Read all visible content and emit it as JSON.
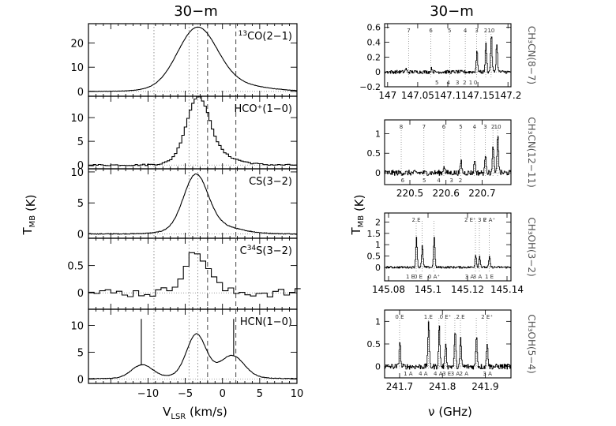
{
  "figure": {
    "left_title": "30−m",
    "right_title": "30−m",
    "left_xlabel": "V_LSR (km/s)",
    "left_ylabel": "T_MB (K)",
    "right_xlabel": "ν (GHz)",
    "right_ylabel": "T_MB (K)"
  },
  "chart_data": [
    {
      "type": "line",
      "panel": "left-1",
      "label_main": "CO(2−1)",
      "label_pre": "13",
      "xlim": [
        -18,
        10
      ],
      "ylim": [
        -2,
        28
      ],
      "yticks": [
        0,
        10,
        20
      ],
      "xticks": [
        -10,
        -5,
        0,
        5,
        10
      ],
      "xticklabels": [],
      "vlines_dotted": [
        -9.2,
        -4.5,
        -3.3
      ],
      "vlines_dashed": [
        -2.0,
        1.8
      ],
      "profile": {
        "kind": "smooth",
        "components": [
          [
            23.0,
            -3.4,
            2.6
          ],
          [
            4.0,
            -1.0,
            5.0
          ]
        ],
        "baseline": 0.0,
        "noise": 0.15
      }
    },
    {
      "type": "line",
      "panel": "left-2",
      "label_main": "HCO⁺(1−0)",
      "label_pre": "",
      "xlim": [
        -18,
        10
      ],
      "ylim": [
        -0.8,
        14.5
      ],
      "yticks": [
        0,
        5,
        10
      ],
      "xticks": [
        -10,
        -5,
        0,
        5,
        10
      ],
      "xticklabels": [],
      "vlines_dotted": [
        -9.2,
        -4.5,
        -3.3
      ],
      "vlines_dashed": [
        -2.0,
        1.8
      ],
      "profile": {
        "kind": "step",
        "components": [
          [
            12.3,
            -3.3,
            1.5
          ],
          [
            2.5,
            -1.8,
            3.0
          ]
        ],
        "baseline": 0.0,
        "noise": 0.2
      }
    },
    {
      "type": "line",
      "panel": "left-3",
      "label_main": "CS(3−2)",
      "label_pre": "",
      "xlim": [
        -18,
        10
      ],
      "ylim": [
        -0.7,
        10.5
      ],
      "yticks": [
        0,
        5,
        10
      ],
      "xticks": [
        -10,
        -5,
        0,
        5,
        10
      ],
      "xticklabels": [],
      "vlines_dotted": [
        -9.2,
        -4.5,
        -3.3
      ],
      "vlines_dashed": [
        -2.0,
        1.8
      ],
      "profile": {
        "kind": "smooth",
        "components": [
          [
            8.2,
            -3.6,
            1.6
          ],
          [
            1.6,
            -2.0,
            3.5
          ]
        ],
        "baseline": 0.0,
        "noise": 0.12
      }
    },
    {
      "type": "line",
      "panel": "left-4",
      "label_main": "S(3−2)",
      "label_pre": "C",
      "label_sup": "34",
      "xlim": [
        -18,
        10
      ],
      "ylim": [
        -0.3,
        1.0
      ],
      "yticks": [
        0,
        0.5
      ],
      "xticks": [
        -10,
        -5,
        0,
        5,
        10
      ],
      "xticklabels": [],
      "vlines_dotted": [
        -9.2,
        -4.5,
        -3.3
      ],
      "vlines_dashed": [
        -2.0,
        1.8
      ],
      "profile": {
        "kind": "step_coarse",
        "components": [
          [
            0.72,
            -3.5,
            1.7
          ]
        ],
        "baseline": 0.0,
        "noise": 0.1
      }
    },
    {
      "type": "line",
      "panel": "left-5",
      "label_main": "HCN(1−0)",
      "label_pre": "",
      "xlim": [
        -18,
        10
      ],
      "ylim": [
        -0.8,
        13
      ],
      "yticks": [
        0,
        5,
        10
      ],
      "xticks": [
        -10,
        -5,
        0,
        5,
        10
      ],
      "xticklabels": [
        "−10",
        "−5",
        "0",
        "5",
        "10"
      ],
      "vlines_dotted": [
        -9.2,
        -4.5,
        -3.3
      ],
      "vlines_dashed": [
        -2.0,
        1.8
      ],
      "spikes": [
        -10.9,
        1.5
      ],
      "spike_height": 11.2,
      "profile": {
        "kind": "hcn",
        "components": [
          [
            7.5,
            -3.5,
            1.3
          ],
          [
            2.4,
            -10.8,
            1.4
          ],
          [
            4.0,
            1.3,
            1.6
          ]
        ],
        "baseline": 0.0,
        "noise": 0.1
      }
    },
    {
      "type": "line",
      "panel": "right-1",
      "label_main": "CH₃CN(8−7)",
      "xlim": [
        146.995,
        147.205
      ],
      "ylim": [
        -0.2,
        0.65
      ],
      "yticks": [
        -0.2,
        0,
        0.2,
        0.4,
        0.6
      ],
      "yticklabels": [
        "−0.2",
        "0",
        "0.2",
        "0.4",
        "0.6"
      ],
      "xticks": [
        147.0,
        147.05,
        147.1,
        147.15,
        147.2
      ],
      "xticklabels": [
        "147",
        "147.05",
        "147.1",
        "147.15",
        "147.2"
      ],
      "lines": [
        147.035,
        147.072,
        147.103,
        147.129,
        147.148,
        147.163,
        147.172
      ],
      "top_labels": [
        "7",
        "6",
        "5",
        "4",
        "3",
        "2",
        "10"
      ],
      "bottom_labels": [
        "5",
        "4",
        "3",
        "2",
        "1",
        "0"
      ],
      "bottom_xs": [
        147.082,
        147.101,
        147.116,
        147.128,
        147.138,
        147.146
      ],
      "peaks": [
        [
          147.148,
          0.28
        ],
        [
          147.163,
          0.38
        ],
        [
          147.172,
          0.5
        ],
        [
          147.181,
          0.38
        ],
        [
          147.073,
          0.05
        ],
        [
          147.03,
          0.04
        ]
      ],
      "noise": 0.03
    },
    {
      "type": "line",
      "panel": "right-2",
      "label_main": "CH₃CN(12−11)",
      "xlim": [
        220.43,
        220.78
      ],
      "ylim": [
        -0.3,
        1.35
      ],
      "yticks": [
        0,
        0.5,
        1
      ],
      "yticklabels": [
        "0",
        "0.5",
        "1"
      ],
      "xticks": [
        220.5,
        220.6,
        220.7
      ],
      "xticklabels": [
        "220.5",
        "220.6",
        "220.7"
      ],
      "lines": [
        220.476,
        220.539,
        220.594,
        220.641,
        220.679,
        220.709,
        220.73,
        220.743
      ],
      "top_labels": [
        "8",
        "7",
        "6",
        "5",
        "4",
        "3",
        "2",
        "10"
      ],
      "bottom_labels": [
        "6",
        "5",
        "4",
        "3",
        "2"
      ],
      "bottom_xs": [
        220.48,
        220.54,
        220.58,
        220.615,
        220.64
      ],
      "peaks": [
        [
          220.709,
          0.5
        ],
        [
          220.73,
          0.7
        ],
        [
          220.743,
          1.0
        ],
        [
          220.679,
          0.35
        ],
        [
          220.641,
          0.3
        ],
        [
          220.594,
          0.2
        ]
      ],
      "noise": 0.09
    },
    {
      "type": "line",
      "panel": "right-3",
      "label_main": "CH₃OH(3−2)",
      "xlim": [
        145.078,
        145.142
      ],
      "ylim": [
        -0.6,
        2.4
      ],
      "yticks": [
        0,
        0.5,
        1,
        1.5,
        2
      ],
      "yticklabels": [
        "0",
        "0.5",
        "1",
        "1.5",
        "2"
      ],
      "xticks": [
        145.08,
        145.1,
        145.12,
        145.14
      ],
      "xticklabels": [
        "145.08",
        "145.1",
        "145.12",
        "145.14"
      ],
      "lines": [
        145.094,
        145.097,
        145.103,
        145.124,
        145.126,
        145.131
      ],
      "top_labels": [
        "2 E",
        "",
        "",
        "2 E⁺ 3 E",
        "",
        "2 A⁺"
      ],
      "bottom_labels": [
        "1 E",
        "0 E",
        "0 A⁺",
        "3 A",
        "3 A",
        "1 E"
      ],
      "bottom_xs": [
        145.091,
        145.095,
        145.103,
        145.121,
        145.125,
        145.131
      ],
      "peaks": [
        [
          145.094,
          1.3
        ],
        [
          145.097,
          0.95
        ],
        [
          145.103,
          1.3
        ],
        [
          145.124,
          0.55
        ],
        [
          145.126,
          0.5
        ],
        [
          145.131,
          0.45
        ]
      ],
      "noise": 0.06
    },
    {
      "type": "line",
      "panel": "right-4",
      "label_main": "CH₃OH(5−4)",
      "xlim": [
        241.665,
        241.96
      ],
      "ylim": [
        -0.25,
        1.25
      ],
      "yticks": [
        0,
        0.5,
        1
      ],
      "yticklabels": [
        "0",
        "0.5",
        "1"
      ],
      "xticks": [
        241.7,
        241.8,
        241.9
      ],
      "xticklabels": [
        "241.7",
        "241.8",
        "241.9"
      ],
      "lines": [
        241.7,
        241.767,
        241.792,
        241.807,
        241.829,
        241.842,
        241.879,
        241.904
      ],
      "top_labels": [
        "0 E",
        "1 E",
        "",
        "0 E⁺",
        "",
        "2 E",
        "",
        "2 E⁺"
      ],
      "bottom_labels": [
        "1 A",
        "4 A",
        "4 A",
        "3 E",
        "3 A",
        "2 A",
        "3 A"
      ],
      "bottom_xs": [
        241.72,
        241.755,
        241.79,
        241.81,
        241.83,
        241.85,
        241.905
      ],
      "peaks": [
        [
          241.7,
          0.55
        ],
        [
          241.767,
          1.0
        ],
        [
          241.792,
          0.9
        ],
        [
          241.807,
          0.55
        ],
        [
          241.829,
          0.8
        ],
        [
          241.842,
          0.6
        ],
        [
          241.879,
          0.7
        ],
        [
          241.904,
          0.55
        ]
      ],
      "noise": 0.08
    }
  ]
}
